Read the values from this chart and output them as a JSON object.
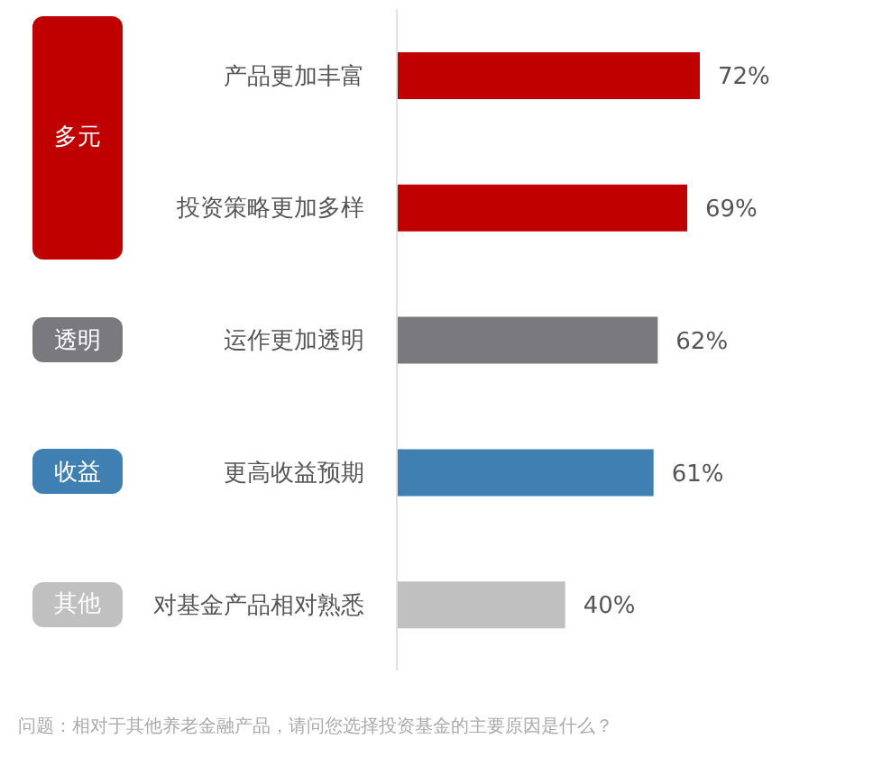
{
  "chart_data": {
    "type": "bar",
    "orientation": "horizontal",
    "categories": [
      "产品更加丰富",
      "投资策略更加多样",
      "运作更加透明",
      "更高收益预期",
      "对基金产品相对熟悉"
    ],
    "values": [
      72,
      69,
      62,
      61,
      40
    ],
    "colors": [
      "#c00000",
      "#c00000",
      "#7a797e",
      "#3f7fb1",
      "#c0c0c0"
    ],
    "value_labels": [
      "72%",
      "69%",
      "62%",
      "61%",
      "40%"
    ],
    "annotations": [
      "多元",
      "透明",
      "收益",
      "其他",
      "问题：相对于其他养老金融产品，请问您选择投资基金的主要原因是什么？"
    ]
  }
}
